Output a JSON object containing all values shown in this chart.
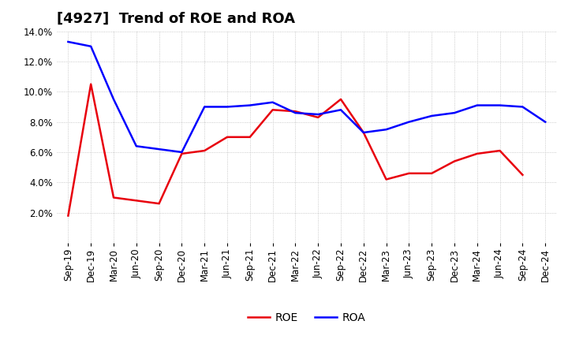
{
  "title": "[4927]  Trend of ROE and ROA",
  "labels": [
    "Sep-19",
    "Dec-19",
    "Mar-20",
    "Jun-20",
    "Sep-20",
    "Dec-20",
    "Mar-21",
    "Jun-21",
    "Sep-21",
    "Dec-21",
    "Mar-22",
    "Jun-22",
    "Sep-22",
    "Dec-22",
    "Mar-23",
    "Jun-23",
    "Sep-23",
    "Dec-23",
    "Mar-24",
    "Jun-24",
    "Sep-24",
    "Dec-24"
  ],
  "ROE": [
    1.8,
    10.5,
    3.0,
    2.8,
    2.6,
    5.9,
    6.1,
    7.0,
    7.0,
    8.8,
    8.7,
    8.3,
    9.5,
    7.3,
    4.2,
    4.6,
    4.6,
    5.4,
    5.9,
    6.1,
    4.5,
    null
  ],
  "ROA": [
    13.3,
    13.0,
    9.5,
    6.4,
    6.2,
    6.0,
    9.0,
    9.0,
    9.1,
    9.3,
    8.6,
    8.5,
    8.8,
    7.3,
    7.5,
    8.0,
    8.4,
    8.6,
    9.1,
    9.1,
    9.0,
    8.0
  ],
  "ROE_color": "#e8000d",
  "ROA_color": "#0000ff",
  "background_color": "#ffffff",
  "grid_color": "#bbbbbb",
  "ylim": [
    0,
    14.0
  ],
  "yticks": [
    0,
    2.0,
    4.0,
    6.0,
    8.0,
    10.0,
    12.0,
    14.0
  ],
  "title_fontsize": 13,
  "legend_fontsize": 10,
  "tick_fontsize": 8.5,
  "linewidth": 1.8
}
